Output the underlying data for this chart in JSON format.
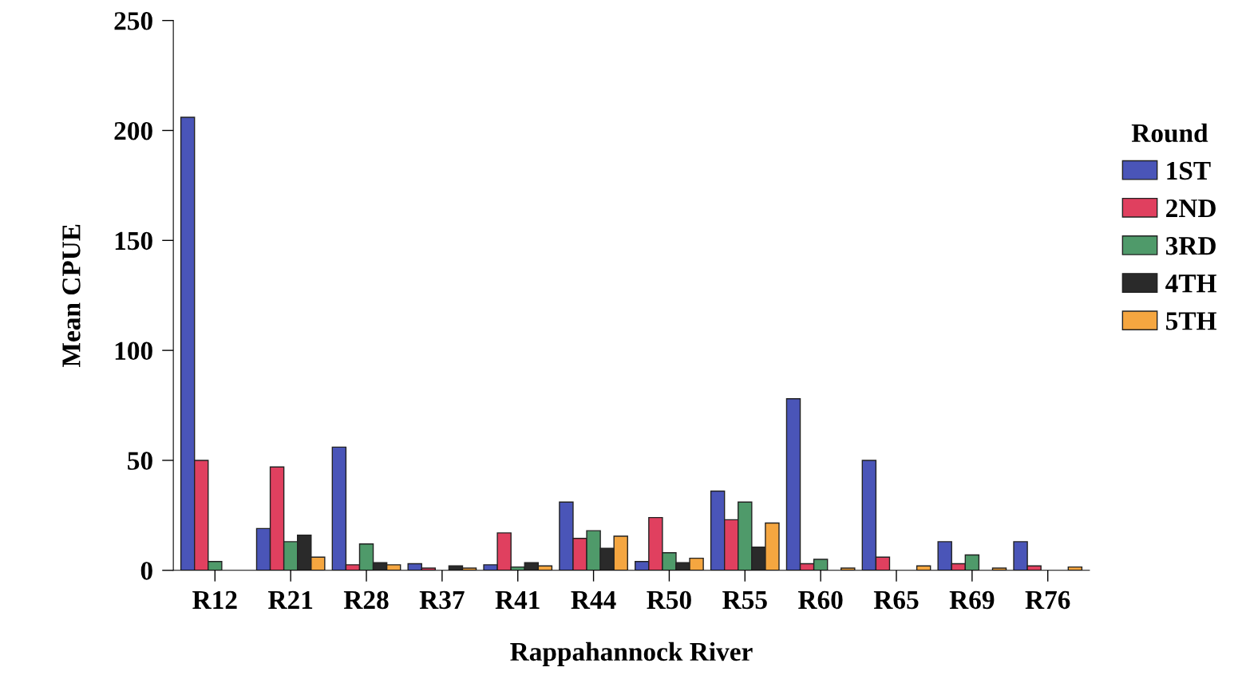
{
  "chart_data": {
    "type": "bar",
    "xlabel": "Rappahannock River",
    "ylabel": "Mean CPUE",
    "legend_title": "Round",
    "legend": "right",
    "categories": [
      "R12",
      "R21",
      "R28",
      "R37",
      "R41",
      "R44",
      "R50",
      "R55",
      "R60",
      "R65",
      "R69",
      "R76"
    ],
    "series": [
      {
        "name": "1ST",
        "color": "#4a55b8",
        "values": [
          206,
          19,
          56,
          3,
          2.5,
          31,
          4,
          36,
          78,
          50,
          13,
          13
        ]
      },
      {
        "name": "2ND",
        "color": "#e0405f",
        "values": [
          50,
          47,
          2.5,
          1,
          17,
          14.5,
          24,
          23,
          3,
          6,
          3,
          2
        ]
      },
      {
        "name": "3RD",
        "color": "#4f9a6a",
        "values": [
          4,
          13,
          12,
          null,
          1.5,
          18,
          8,
          31,
          5,
          null,
          7,
          null
        ]
      },
      {
        "name": "4TH",
        "color": "#2a2a2a",
        "values": [
          null,
          16,
          3.5,
          2,
          3.5,
          10,
          3.5,
          10.5,
          null,
          null,
          null,
          null
        ]
      },
      {
        "name": "5TH",
        "color": "#f5a640",
        "values": [
          null,
          6,
          2.5,
          1,
          2,
          15.5,
          5.5,
          21.5,
          1,
          2,
          1,
          1.5
        ]
      }
    ],
    "ylim": [
      0,
      250
    ],
    "yticks": [
      0,
      50,
      100,
      150,
      200,
      250
    ],
    "grid": false
  }
}
